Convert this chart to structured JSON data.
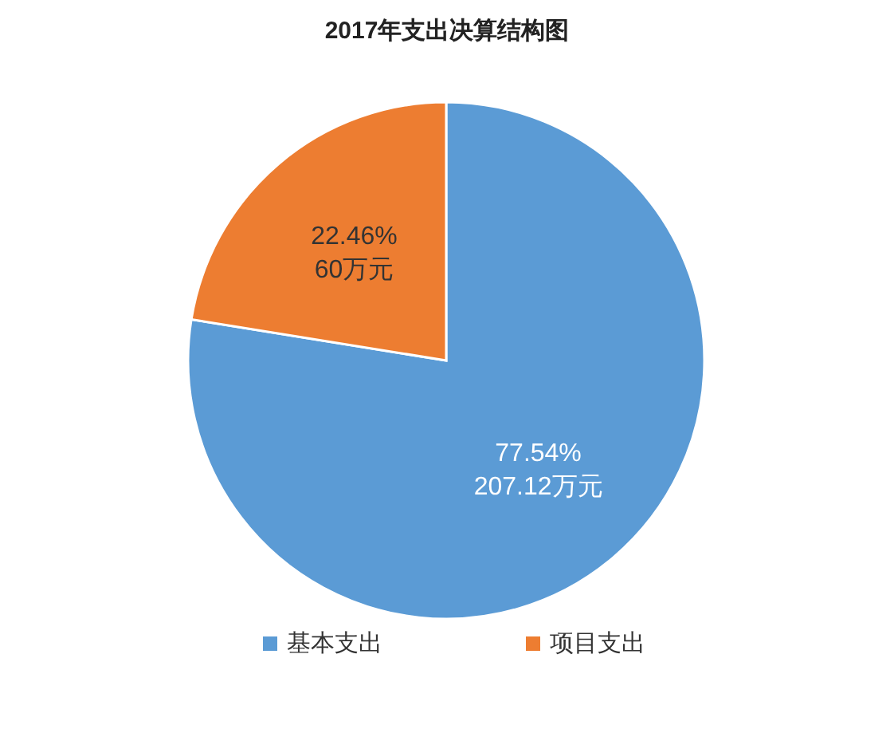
{
  "chart_data": {
    "type": "pie",
    "title": "2017年支出决算结构图",
    "categories": [
      "基本支出",
      "项目支出"
    ],
    "values": [
      207.12,
      60
    ],
    "colors": [
      "#5b9bd5",
      "#ed7d31"
    ],
    "value_labels": [
      "77.54%\n207.12万元",
      "22.46%\n60万元"
    ],
    "legend": "bottom"
  }
}
